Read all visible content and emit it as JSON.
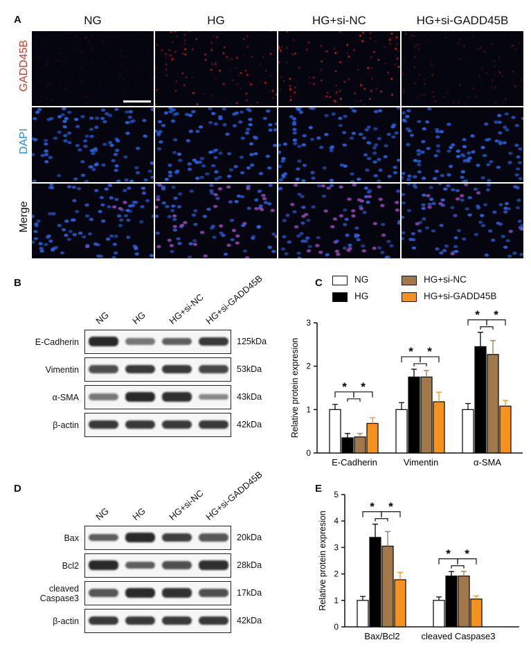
{
  "panels": {
    "A": "A",
    "B": "B",
    "C": "C",
    "D": "D",
    "E": "E"
  },
  "panelA": {
    "columns": [
      "NG",
      "HG",
      "HG+si-NC",
      "HG+si-GADD45B"
    ],
    "rows": [
      {
        "label": "GADD45B",
        "color": "#d23a2a"
      },
      {
        "label": "DAPI",
        "color": "#2b86d6"
      },
      {
        "label": "Merge",
        "color": "#111111"
      }
    ],
    "signal_level": {
      "GADD45B": [
        0.15,
        0.75,
        0.85,
        0.3
      ]
    }
  },
  "panelB": {
    "lanes": [
      "NG",
      "HG",
      "HG+si-NC",
      "HG+si-GADD45B"
    ],
    "blots": [
      {
        "name": "E-Cadherin",
        "kda": "125kDa",
        "intensity": [
          0.95,
          0.45,
          0.6,
          0.85
        ]
      },
      {
        "name": "Vimentin",
        "kda": "53kDa",
        "intensity": [
          0.7,
          0.85,
          0.85,
          0.75
        ]
      },
      {
        "name": "α-SMA",
        "kda": "43kDa",
        "intensity": [
          0.45,
          0.95,
          0.9,
          0.35
        ]
      },
      {
        "name": "β-actin",
        "kda": "42kDa",
        "intensity": [
          0.85,
          0.85,
          0.85,
          0.85
        ]
      }
    ]
  },
  "panelD": {
    "lanes": [
      "NG",
      "HG",
      "HG+si-NC",
      "HG+si-GADD45B"
    ],
    "blots": [
      {
        "name": "Bax",
        "kda": "20kDa",
        "intensity": [
          0.6,
          0.95,
          0.8,
          0.65
        ]
      },
      {
        "name": "Bcl2",
        "kda": "28kDa",
        "intensity": [
          0.95,
          0.6,
          0.7,
          0.9
        ]
      },
      {
        "name": "cleaved\nCaspase3",
        "kda": "17kDa",
        "intensity": [
          0.65,
          0.95,
          0.9,
          0.7
        ]
      },
      {
        "name": "β-actin",
        "kda": "42kDa",
        "intensity": [
          0.85,
          0.85,
          0.85,
          0.85
        ]
      }
    ]
  },
  "legend": {
    "items": [
      {
        "label": "NG",
        "color": "#ffffff"
      },
      {
        "label": "HG",
        "color": "#000000"
      },
      {
        "label": "HG+si-NC",
        "color": "#a0784a"
      },
      {
        "label": "HG+si-GADD45B",
        "color": "#f5921e"
      }
    ]
  },
  "chart_data": [
    {
      "type": "bar",
      "panel": "C",
      "ylabel": "Relative protein expresion",
      "ylim": [
        0,
        3
      ],
      "yticks": [
        "0",
        "1",
        "2",
        "3"
      ],
      "categories": [
        "E-Cadherin",
        "Vimentin",
        "α-SMA"
      ],
      "series": [
        {
          "name": "NG",
          "color": "#ffffff",
          "values": [
            1.0,
            1.0,
            1.0
          ],
          "errors": [
            0.12,
            0.16,
            0.14
          ]
        },
        {
          "name": "HG",
          "color": "#000000",
          "values": [
            0.35,
            1.75,
            2.45
          ],
          "errors": [
            0.1,
            0.18,
            0.33
          ]
        },
        {
          "name": "HG+si-NC",
          "color": "#a0784a",
          "values": [
            0.37,
            1.75,
            2.27
          ],
          "errors": [
            0.08,
            0.15,
            0.32
          ]
        },
        {
          "name": "HG+si-GADD45B",
          "color": "#f5921e",
          "values": [
            0.68,
            1.18,
            1.08
          ],
          "errors": [
            0.13,
            0.22,
            0.13
          ]
        }
      ],
      "significance": "*"
    },
    {
      "type": "bar",
      "panel": "E",
      "ylabel": "Relative protein expresion",
      "ylim": [
        0,
        5
      ],
      "yticks": [
        "0",
        "1",
        "2",
        "3",
        "4",
        "5"
      ],
      "categories": [
        "Bax/Bcl2",
        "cleaved Caspase3"
      ],
      "series": [
        {
          "name": "NG",
          "color": "#ffffff",
          "values": [
            1.0,
            1.0
          ],
          "errors": [
            0.15,
            0.13
          ]
        },
        {
          "name": "HG",
          "color": "#000000",
          "values": [
            3.38,
            1.92
          ],
          "errors": [
            0.5,
            0.17
          ]
        },
        {
          "name": "HG+si-NC",
          "color": "#a0784a",
          "values": [
            3.05,
            1.92
          ],
          "errors": [
            0.55,
            0.18
          ]
        },
        {
          "name": "HG+si-GADD45B",
          "color": "#f5921e",
          "values": [
            1.78,
            1.05
          ],
          "errors": [
            0.28,
            0.12
          ]
        }
      ],
      "significance": "*"
    }
  ]
}
